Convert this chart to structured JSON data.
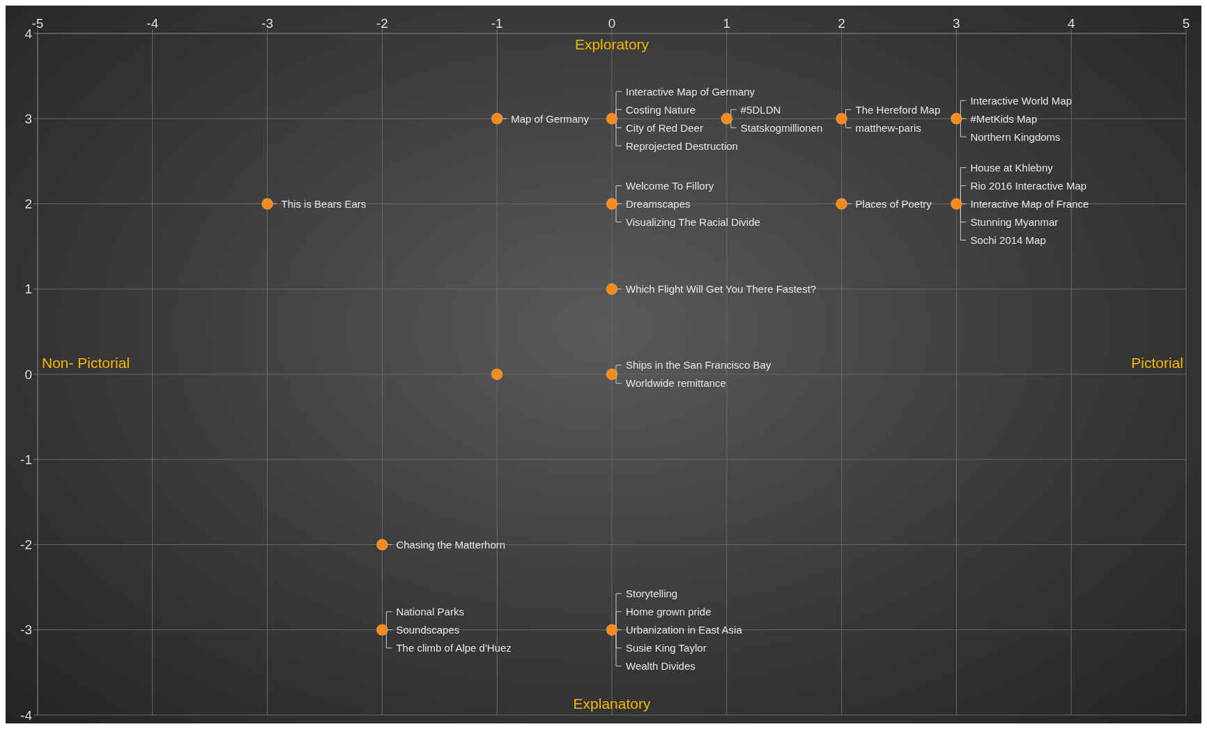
{
  "chart_data": {
    "type": "scatter",
    "x": [
      -1,
      0,
      1,
      2,
      3,
      -3,
      0,
      2,
      3,
      0,
      -1,
      0,
      -2,
      -2,
      0
    ],
    "values": [
      3,
      3,
      3,
      3,
      3,
      2,
      2,
      2,
      2,
      1,
      0,
      0,
      -2,
      -3,
      -3
    ],
    "color": "#f28c1e",
    "marker": "circle",
    "grid": true,
    "xlim": [
      -5,
      5
    ],
    "xticks": [
      -5,
      -4,
      -3,
      -2,
      -1,
      0,
      1,
      2,
      3,
      4,
      5
    ],
    "ylim": [
      -4,
      4
    ],
    "yticks": [
      -4,
      -3,
      -2,
      -1,
      0,
      1,
      2,
      3,
      4
    ],
    "annotations": [
      "Exploratory",
      "Explanatory",
      "Non- Pictorial",
      "Pictorial",
      {
        "text": "Map of Germany",
        "x": -1,
        "y": 3
      },
      {
        "text": "Interactive Map of Germany",
        "x": 0,
        "y": 3
      },
      {
        "text": "Costing Nature",
        "x": 0,
        "y": 3
      },
      {
        "text": "City of Red Deer",
        "x": 0,
        "y": 3
      },
      {
        "text": "Reprojected Destruction",
        "x": 0,
        "y": 3
      },
      {
        "text": "#5DLDN",
        "x": 1,
        "y": 3
      },
      {
        "text": "Statskogmillionen",
        "x": 1,
        "y": 3
      },
      {
        "text": "The Hereford Map",
        "x": 2,
        "y": 3
      },
      {
        "text": "matthew-paris",
        "x": 2,
        "y": 3
      },
      {
        "text": "Interactive World Map",
        "x": 3,
        "y": 3
      },
      {
        "text": "#MetKids Map",
        "x": 3,
        "y": 3
      },
      {
        "text": "Northern Kingdoms",
        "x": 3,
        "y": 3
      },
      {
        "text": "This is Bears Ears",
        "x": -3,
        "y": 2
      },
      {
        "text": "Welcome To Fillory",
        "x": 0,
        "y": 2
      },
      {
        "text": "Dreamscapes",
        "x": 0,
        "y": 2
      },
      {
        "text": "Visualizing The Racial Divide",
        "x": 0,
        "y": 2
      },
      {
        "text": "Places of Poetry",
        "x": 2,
        "y": 2
      },
      {
        "text": "House at Khlebny",
        "x": 3,
        "y": 2
      },
      {
        "text": "Rio 2016 Interactive Map",
        "x": 3,
        "y": 2
      },
      {
        "text": "Interactive Map of France",
        "x": 3,
        "y": 2
      },
      {
        "text": "Stunning Myanmar",
        "x": 3,
        "y": 2
      },
      {
        "text": "Sochi 2014 Map",
        "x": 3,
        "y": 2
      },
      {
        "text": "Which Flight Will Get You There Fastest?",
        "x": 0,
        "y": 1
      },
      {
        "text": "Ships in the San Francisco Bay",
        "x": 0,
        "y": 0
      },
      {
        "text": "Worldwide remittance",
        "x": 0,
        "y": 0
      },
      {
        "text": "Chasing the Matterhorn",
        "x": -2,
        "y": -2
      },
      {
        "text": "National Parks",
        "x": -2,
        "y": -3
      },
      {
        "text": "Soundscapes",
        "x": -2,
        "y": -3
      },
      {
        "text": "The climb of Alpe d'Huez",
        "x": -2,
        "y": -3
      },
      {
        "text": "Storytelling",
        "x": 0,
        "y": -3
      },
      {
        "text": "Home grown pride",
        "x": 0,
        "y": -3
      },
      {
        "text": "Urbanization in East Asia",
        "x": 0,
        "y": -3
      },
      {
        "text": "Susie King Taylor",
        "x": 0,
        "y": -3
      },
      {
        "text": "Wealth Divides",
        "x": 0,
        "y": -3
      }
    ]
  }
}
